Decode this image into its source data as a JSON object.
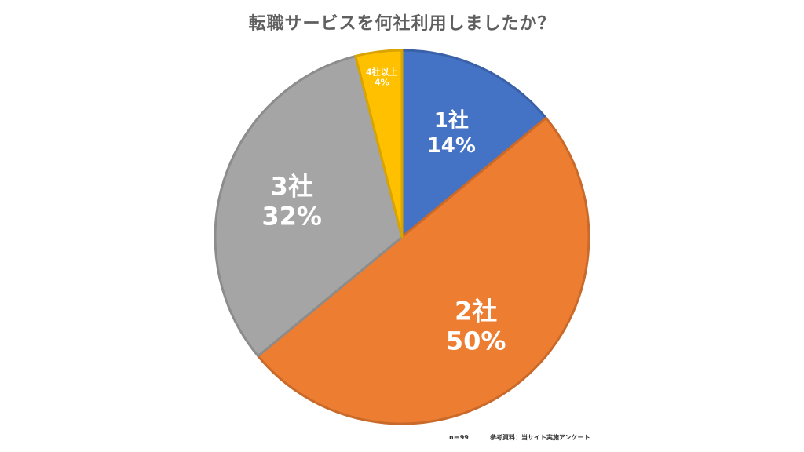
{
  "title": "転職サービスを何社利用しましたか？",
  "footer": {
    "sample_size": "n＝99",
    "source": "参考資料：当サイト実施アンケート"
  },
  "chart_data": {
    "type": "pie",
    "title": "転職サービスを何社利用しましたか？",
    "categories": [
      "1社",
      "2社",
      "3社",
      "4社以上"
    ],
    "values": [
      14,
      50,
      32,
      4
    ],
    "value_labels": [
      "14%",
      "50%",
      "32%",
      "4%"
    ],
    "colors": [
      "#4472C4",
      "#ED7D31",
      "#A5A5A5",
      "#FFC000"
    ],
    "start_angle": "12 o'clock",
    "direction": "clockwise",
    "legend": "none"
  }
}
